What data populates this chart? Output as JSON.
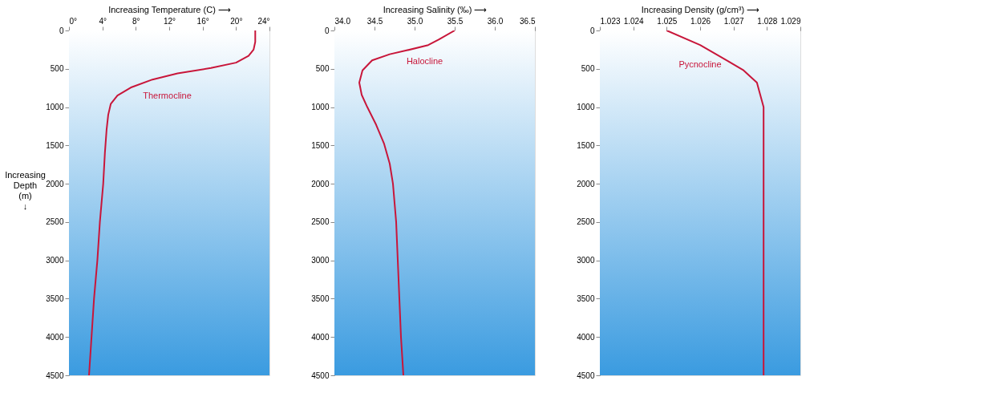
{
  "chart_data": [
    {
      "type": "line",
      "xlabel": "Increasing Temperature (C) ⟶",
      "ylabel": "Increasing Depth (m) ↓",
      "series": [
        {
          "color": "#c8163a",
          "x": [
            22.3,
            22.3,
            22.1,
            21.5,
            20,
            17,
            13,
            10,
            7.5,
            5.8,
            5,
            4.7,
            4.5,
            4.3,
            4.1,
            3.7,
            3.4,
            3.0,
            2.7,
            2.4
          ],
          "values": [
            0,
            150,
            250,
            330,
            420,
            490,
            560,
            640,
            740,
            850,
            960,
            1100,
            1300,
            1600,
            2000,
            2500,
            3000,
            3500,
            4000,
            4500
          ]
        }
      ],
      "annotations": [
        "Thermocline"
      ],
      "xlim": [
        0,
        24
      ],
      "xticks": [
        {
          "value": 0,
          "label": "0°"
        },
        {
          "value": 4,
          "label": "4°"
        },
        {
          "value": 8,
          "label": "8°"
        },
        {
          "value": 12,
          "label": "12°"
        },
        {
          "value": 16,
          "label": "16°"
        },
        {
          "value": 20,
          "label": "20°"
        },
        {
          "value": 24,
          "label": "24°"
        }
      ],
      "ylim": [
        4500,
        0
      ],
      "yticks": [
        0,
        500,
        1000,
        1500,
        2000,
        2500,
        3000,
        3500,
        4000,
        4500
      ],
      "grid": false
    },
    {
      "type": "line",
      "xlabel": "Increasing Salinity (‰) ⟶",
      "series": [
        {
          "color": "#c8163a",
          "x": [
            35.5,
            35.3,
            35.17,
            34.9,
            34.69,
            34.47,
            34.35,
            34.31,
            34.34,
            34.41,
            34.52,
            34.62,
            34.69,
            34.73,
            34.77,
            34.79,
            34.81,
            34.83,
            34.86
          ],
          "values": [
            0,
            120,
            190,
            260,
            310,
            390,
            520,
            680,
            840,
            1000,
            1230,
            1480,
            1740,
            2000,
            2500,
            3000,
            3500,
            4000,
            4500
          ]
        }
      ],
      "annotations": [
        "Halocline"
      ],
      "xlim": [
        34,
        36.5
      ],
      "xticks": [
        {
          "value": 34,
          "label": "34.0"
        },
        34.5,
        {
          "value": 35,
          "label": "35.0"
        },
        35.5,
        {
          "value": 36,
          "label": "36.0"
        },
        36.5
      ],
      "ylim": [
        4500,
        0
      ],
      "yticks": [
        0,
        500,
        1000,
        1500,
        2000,
        2500,
        3000,
        3500,
        4000,
        4500
      ],
      "grid": false
    },
    {
      "type": "line",
      "xlabel": "Increasing Density (g/cm³) ⟶",
      "series": [
        {
          "color": "#c8163a",
          "x": [
            1.025,
            1.026,
            1.0268,
            1.0273,
            1.0277,
            1.0278,
            1.0279,
            1.0279
          ],
          "values": [
            0,
            190,
            390,
            520,
            680,
            840,
            1000,
            4500
          ]
        }
      ],
      "annotations": [
        "Pycnocline"
      ],
      "xlim": [
        1.023,
        1.029
      ],
      "xticks": [
        1.023,
        1.024,
        1.025,
        1.026,
        1.027,
        1.028,
        1.029
      ],
      "ylim": [
        4500,
        0
      ],
      "yticks": [
        0,
        500,
        1000,
        1500,
        2000,
        2500,
        3000,
        3500,
        4000,
        4500
      ],
      "grid": false
    }
  ]
}
